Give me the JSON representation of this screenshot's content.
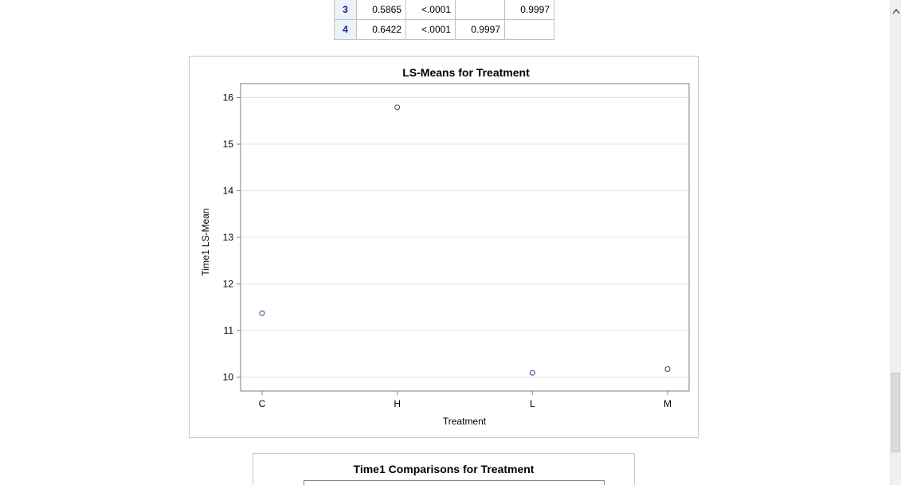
{
  "pvalue_table": {
    "rows": [
      {
        "label": "3",
        "cells": [
          "0.5865",
          "<.0001",
          "",
          "0.9997"
        ]
      },
      {
        "label": "4",
        "cells": [
          "0.6422",
          "<.0001",
          "0.9997",
          ""
        ]
      }
    ]
  },
  "chart_data": {
    "type": "scatter",
    "title": "LS-Means for Treatment",
    "xlabel": "Treatment",
    "ylabel": "Time1 LS-Mean",
    "categories": [
      "C",
      "H",
      "L",
      "M"
    ],
    "values": [
      11.37,
      15.79,
      10.09,
      10.17
    ],
    "ylim": [
      9.7,
      16.3
    ],
    "yticks": [
      10,
      11,
      12,
      13,
      14,
      15,
      16
    ],
    "grid": true,
    "marker": "open-circle",
    "marker_color": "#2a3f8f"
  },
  "comparisons_panel": {
    "title": "Time1 Comparisons for Treatment"
  },
  "scrollbar": {
    "up_icon": "chevron-up-icon"
  }
}
